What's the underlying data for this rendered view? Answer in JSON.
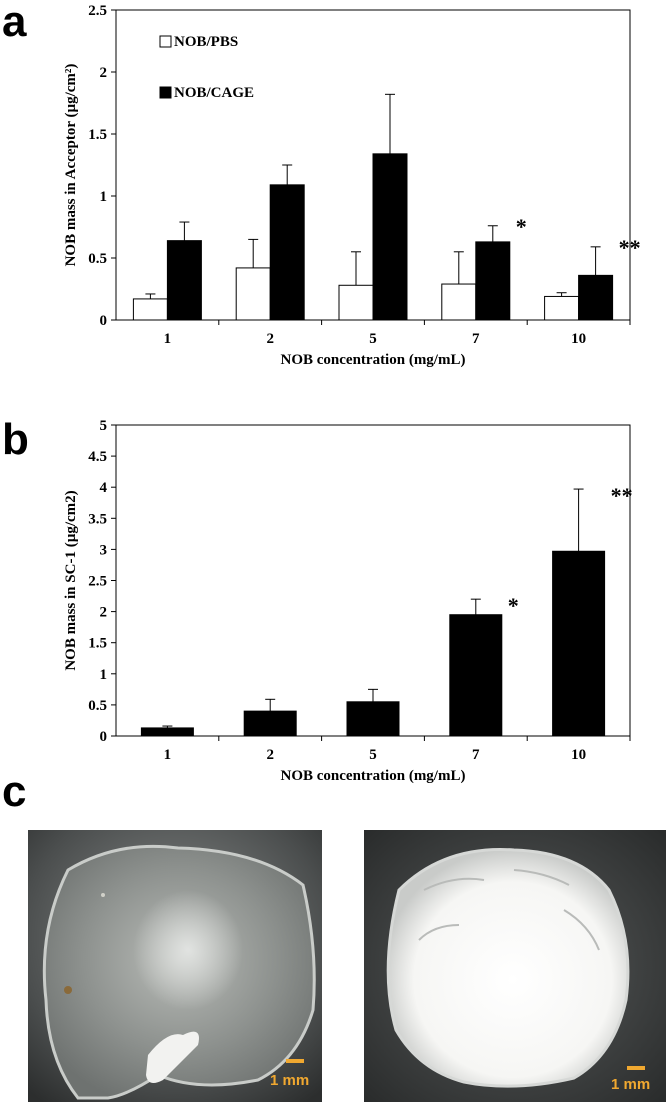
{
  "panels": {
    "a": "a",
    "b": "b",
    "c": "c"
  },
  "chart_data": [
    {
      "type": "bar",
      "panel": "a",
      "categories": [
        "1",
        "2",
        "5",
        "7",
        "10"
      ],
      "series": [
        {
          "name": "NOB/PBS",
          "values": [
            0.17,
            0.42,
            0.28,
            0.29,
            0.19
          ],
          "errors": [
            0.04,
            0.23,
            0.27,
            0.26,
            0.03
          ],
          "color": "#ffffff"
        },
        {
          "name": "NOB/CAGE",
          "values": [
            0.64,
            1.09,
            1.34,
            0.63,
            0.36
          ],
          "errors": [
            0.15,
            0.16,
            0.48,
            0.13,
            0.23
          ],
          "color": "#000000"
        }
      ],
      "annotations": [
        {
          "category": "7",
          "text": "*"
        },
        {
          "category": "10",
          "text": "**"
        }
      ],
      "xlabel": "NOB concentration (mg/mL)",
      "ylabel": "NOB mass in Acceptor (µg/cm²)",
      "ylim": [
        0,
        2.5
      ],
      "yticks": [
        "0",
        "0.5",
        "1",
        "1.5",
        "2",
        "2.5"
      ],
      "legend": "top-left",
      "grid": false
    },
    {
      "type": "bar",
      "panel": "b",
      "categories": [
        "1",
        "2",
        "5",
        "7",
        "10"
      ],
      "series": [
        {
          "values": [
            0.13,
            0.4,
            0.55,
            1.95,
            2.97
          ],
          "errors": [
            0.03,
            0.19,
            0.2,
            0.25,
            1.0
          ],
          "color": "#000000"
        }
      ],
      "annotations": [
        {
          "category": "7",
          "text": "*"
        },
        {
          "category": "10",
          "text": "**"
        }
      ],
      "xlabel": "NOB concentration (mg/mL)",
      "ylabel": "NOB mass in SC-1 (µg/cm2)",
      "ylim": [
        0,
        5
      ],
      "yticks": [
        "0",
        "0.5",
        "1",
        "1.5",
        "2",
        "2.5",
        "3",
        "3.5",
        "4",
        "4.5",
        "5"
      ],
      "grid": false
    }
  ],
  "photos": [
    {
      "scale_label": "1 mm"
    },
    {
      "scale_label": "1 mm"
    }
  ]
}
